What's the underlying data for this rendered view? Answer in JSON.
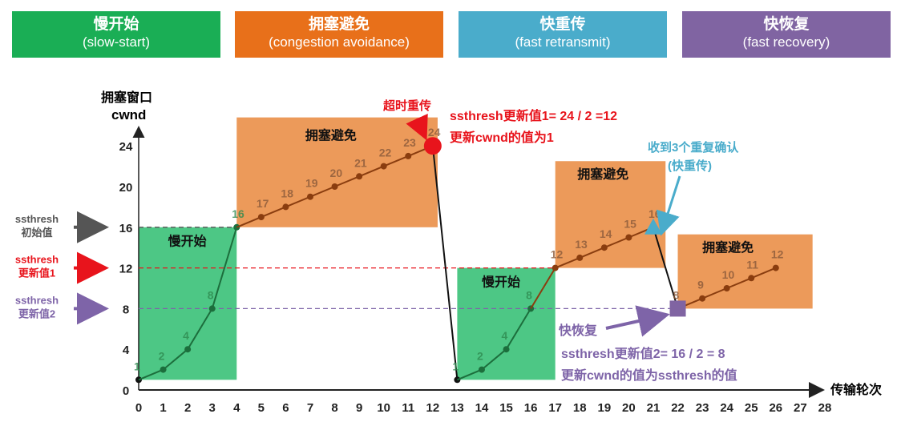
{
  "phases_header": [
    {
      "title": "慢开始",
      "subtitle": "(slow-start)",
      "color": "#1aae55"
    },
    {
      "title": "拥塞避免",
      "subtitle": "(congestion avoidance)",
      "color": "#e8701a"
    },
    {
      "title": "快重传",
      "subtitle": "(fast retransmit)",
      "color": "#4aaccb"
    },
    {
      "title": "快恢复",
      "subtitle": "(fast recovery)",
      "color": "#8064a2"
    }
  ],
  "chart_data": {
    "type": "line",
    "ylabel_cn": "拥塞窗口",
    "ylabel": "cwnd",
    "xlabel": "传输轮次",
    "x_ticks": [
      0,
      1,
      2,
      3,
      4,
      5,
      6,
      7,
      8,
      9,
      10,
      11,
      12,
      13,
      14,
      15,
      16,
      17,
      18,
      19,
      20,
      21,
      22,
      23,
      24,
      25,
      26,
      27,
      28
    ],
    "y_ticks": [
      0,
      4,
      8,
      12,
      16,
      20,
      24
    ],
    "series": [
      {
        "name": "phase1",
        "x": [
          0,
          1,
          2,
          3,
          4,
          5,
          6,
          7,
          8,
          9,
          10,
          11,
          12
        ],
        "values": [
          1,
          2,
          4,
          8,
          16,
          17,
          18,
          19,
          20,
          21,
          22,
          23,
          24
        ]
      },
      {
        "name": "phase2",
        "x": [
          13,
          14,
          15,
          16,
          17,
          18,
          19,
          20,
          21
        ],
        "values": [
          1,
          2,
          4,
          8,
          12,
          13,
          14,
          15,
          16
        ]
      },
      {
        "name": "phase3",
        "x": [
          22,
          23,
          24,
          25,
          26
        ],
        "values": [
          8,
          9,
          10,
          11,
          12
        ]
      }
    ],
    "regions": {
      "slow_start": "慢开始",
      "congestion_avoidance": "拥塞避免"
    },
    "thresholds": [
      {
        "value": 16,
        "label1": "ssthresh",
        "label2": "初始值",
        "color": "#555555"
      },
      {
        "value": 12,
        "label1": "ssthresh",
        "label2": "更新值1",
        "color": "#e8141c"
      },
      {
        "value": 8,
        "label1": "ssthresh",
        "label2": "更新值2",
        "color": "#7e64a8"
      }
    ],
    "annotations": {
      "timeout": "超时重传",
      "update1_line1": "ssthresh更新值1= 24 / 2 =12",
      "update1_line2": "更新cwnd的值为1",
      "dupack_line1": "收到3个重复确认",
      "dupack_line2": "(快重传)",
      "fast_recovery": "快恢复",
      "update2_line1": "ssthresh更新值2= 16 / 2 = 8",
      "update2_line2": "更新cwnd的值为ssthresh的值"
    }
  }
}
